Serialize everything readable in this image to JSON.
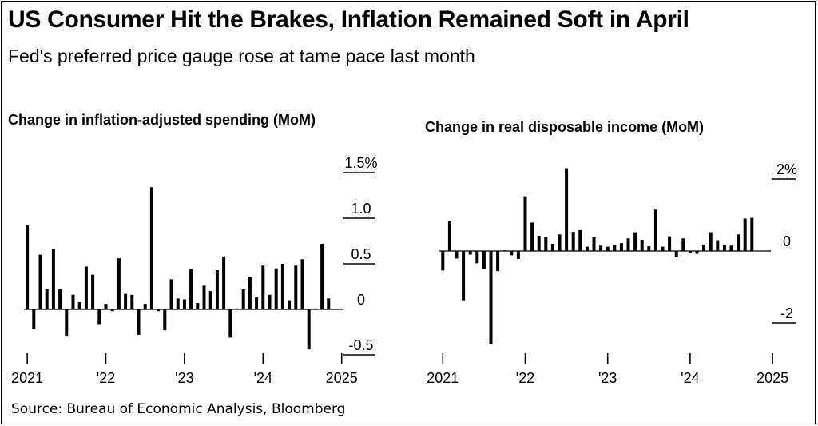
{
  "title": "US Consumer Hit the Brakes, Inflation Remained Soft in April",
  "subtitle": "Fed's preferred price gauge rose at tame pace last month",
  "source": "Source: Bureau of Economic Analysis, Bloomberg",
  "colors": {
    "bar": "#000000",
    "axis": "#000000",
    "background": "#ffffff"
  },
  "chart_data": [
    {
      "type": "bar",
      "title": "Change in inflation-adjusted spending (MoM)",
      "start": "2021-01",
      "ylim": [
        -0.7,
        1.6
      ],
      "yticks": [
        1.5,
        1.0,
        0.5,
        0,
        -0.5
      ],
      "ytick_labels": [
        "1.5%",
        "1.0",
        "0.5",
        "0",
        "-0.5"
      ],
      "xtick_labels": [
        {
          "month": "2021-01",
          "label": "2021"
        },
        {
          "month": "2022-01",
          "label": "'22"
        },
        {
          "month": "2023-01",
          "label": "'23"
        },
        {
          "month": "2024-01",
          "label": "'24"
        },
        {
          "month": "2025-01",
          "label": "2025"
        }
      ],
      "values": [
        0.92,
        -0.22,
        0.6,
        0.22,
        0.66,
        0.22,
        -0.3,
        0.16,
        0.08,
        0.47,
        0.38,
        -0.17,
        0.06,
        -0.02,
        0.56,
        0.17,
        0.16,
        -0.28,
        0.06,
        1.34,
        -0.02,
        -0.23,
        0.33,
        0.12,
        0.11,
        0.44,
        0.07,
        0.26,
        0.2,
        0.43,
        0.58,
        -0.31,
        0.01,
        0.22,
        0.36,
        0.13,
        0.48,
        0.16,
        0.45,
        0.5,
        0.1,
        0.48,
        0.55,
        -0.44,
        0.01,
        0.72,
        0.12
      ]
    },
    {
      "type": "bar",
      "title": "Change in real disposable income (MoM)",
      "start": "2021-01",
      "ylim": [
        -3.0,
        2.6
      ],
      "yticks": [
        2,
        0,
        -2
      ],
      "ytick_labels": [
        "2%",
        "0",
        "-2"
      ],
      "xtick_labels": [
        {
          "month": "2021-01",
          "label": "2021"
        },
        {
          "month": "2022-01",
          "label": "'22"
        },
        {
          "month": "2023-01",
          "label": "'23"
        },
        {
          "month": "2024-01",
          "label": "'24"
        },
        {
          "month": "2025-01",
          "label": "2025"
        }
      ],
      "values": [
        -0.54,
        0.83,
        -0.21,
        -1.37,
        -0.1,
        -0.34,
        -0.5,
        -2.6,
        -0.56,
        0.0,
        -0.12,
        -0.22,
        1.52,
        0.79,
        0.42,
        0.39,
        0.2,
        0.46,
        2.3,
        0.53,
        0.58,
        0.12,
        0.38,
        0.15,
        0.12,
        0.17,
        0.22,
        0.35,
        0.52,
        0.31,
        0.13,
        1.15,
        0.12,
        0.41,
        -0.17,
        0.35,
        -0.06,
        -0.08,
        0.18,
        0.52,
        0.3,
        0.17,
        0.15,
        0.46,
        0.9,
        0.92
      ]
    }
  ]
}
